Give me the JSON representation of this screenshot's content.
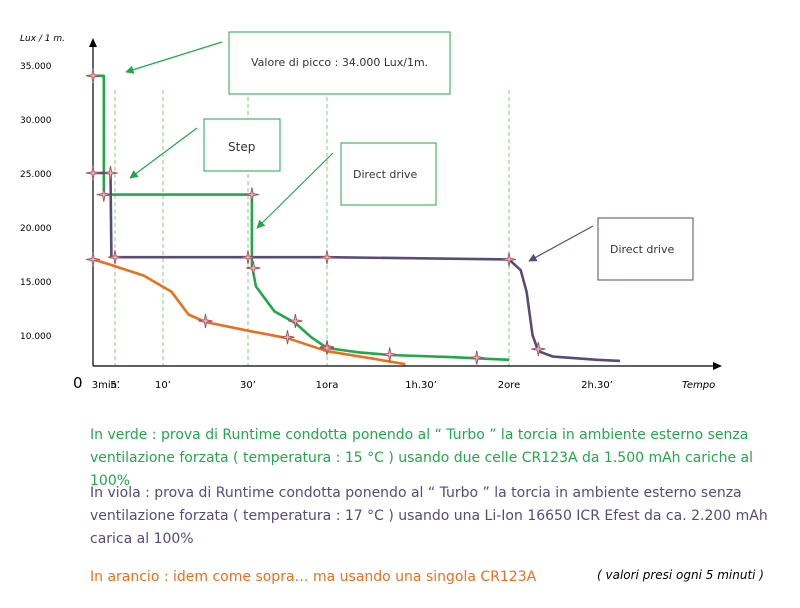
{
  "chart_data": {
    "type": "line",
    "ylabel": "Lux / 1 m.",
    "xlabel": "Tempo",
    "origin_label": "0",
    "y_ticks": [
      10000,
      15000,
      20000,
      25000,
      30000,
      35000
    ],
    "y_tick_labels": [
      "10.000",
      "15.000",
      "20.000",
      "25.000",
      "30.000",
      "35.000"
    ],
    "ylim": [
      7000,
      38500
    ],
    "x_ticks": [
      3,
      5,
      10,
      30,
      60,
      90,
      120,
      150
    ],
    "x_tick_labels": [
      "3min.",
      "5’",
      "10’",
      "30’",
      "1ora",
      "1h.30’",
      "2ore",
      "2h.30’"
    ],
    "x_gridlines_at": [
      5,
      10,
      30,
      60,
      120
    ],
    "grid": "dashed vertical (green)",
    "series": [
      {
        "color": "#22a84a",
        "x": [
          0,
          2.5,
          2.5,
          4,
          4,
          31.5,
          31.5,
          33,
          40,
          48,
          54,
          60,
          70,
          80,
          100,
          120
        ],
        "y": [
          34000,
          34000,
          23000,
          23000,
          23000,
          23000,
          16500,
          14500,
          12200,
          11100,
          9800,
          8800,
          8400,
          8150,
          7950,
          7700
        ],
        "markers_x": [
          0,
          2.5,
          31.5,
          32,
          48,
          60,
          80,
          109
        ],
        "markers_y": [
          34000,
          23000,
          23000,
          16200,
          11300,
          8900,
          8200,
          7900
        ]
      },
      {
        "color": "#5a4a78",
        "x": [
          0,
          4,
          4.2,
          5,
          20,
          60,
          120,
          124,
          126,
          128,
          130,
          135,
          150,
          160
        ],
        "y": [
          25000,
          25000,
          17200,
          17200,
          17200,
          17200,
          17000,
          16000,
          14000,
          10000,
          8500,
          8000,
          7700,
          7600
        ],
        "markers_x": [
          0,
          4,
          5,
          30,
          60,
          120,
          130
        ],
        "markers_y": [
          25000,
          25000,
          17200,
          17200,
          17200,
          17000,
          8700
        ]
      },
      {
        "color": "#e8701e",
        "x": [
          0,
          4,
          8,
          12,
          16,
          20,
          30,
          45,
          60,
          75,
          85
        ],
        "y": [
          17000,
          16500,
          15500,
          14000,
          11900,
          11200,
          10400,
          9700,
          8500,
          7800,
          7300
        ],
        "markers_x": [
          0,
          20,
          45,
          60
        ],
        "markers_y": [
          17000,
          11300,
          9800,
          8800
        ]
      }
    ],
    "annotations": [
      {
        "text": "Valore di picco : 34.000 Lux/1m."
      },
      {
        "text": "Step"
      },
      {
        "text": "Direct  drive"
      },
      {
        "text": "Direct  drive"
      }
    ]
  },
  "notes": {
    "green": "In verde : prova di Runtime condotta ponendo al “ Turbo ” la torcia in ambiente esterno senza ventilazione forzata ( temperatura : 15 °C ) usando due celle CR123A da 1.500 mAh cariche al 100%",
    "violet": "In viola : prova di Runtime condotta ponendo al “ Turbo ” la torcia in ambiente esterno senza ventilazione forzata ( temperatura : 17 °C ) usando una Li-Ion 16650 ICR Efest da ca. 2.200 mAh carica al 100%",
    "orange": "In arancio : idem come sopra… ma usando una singola CR123A",
    "footnote": "( valori presi ogni 5 minuti )"
  }
}
